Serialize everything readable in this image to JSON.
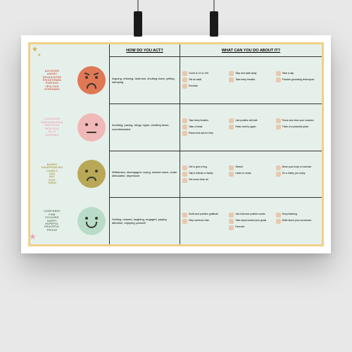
{
  "colors": {
    "border": "#f0d088",
    "bg": "#e6f0ea",
    "zone_red": "#e07856",
    "zone_pink": "#f0b8b8",
    "zone_olive": "#b8a858",
    "zone_green": "#b8dcc8",
    "text_red": "#d05848",
    "text_pink": "#e8a8b8",
    "text_olive": "#a89848",
    "text_green": "#5a7860",
    "icon_tint": "#e8c8b0"
  },
  "headers": {
    "act": "HOW DO YOU ACT?",
    "do": "WHAT CAN YOU DO ABOUT IT?"
  },
  "zones": [
    {
      "id": "red",
      "face_color_key": "zone_red",
      "label_color_key": "text_red",
      "face": "angry",
      "emotions": [
        "AGITATED",
        "ANGRY",
        "DEVASTATED",
        "FRIGHTENED",
        "FURIOUS",
        "JEALOUS",
        "STRESSED"
      ],
      "act": "Arguing, refusing, tantrums, shutting down, yelling, stomping",
      "tips": [
        "Count to 10 or 100",
        "Stop and walk away",
        "Take a nap",
        "Tell an adult",
        "Take deep breaths",
        "Practice grounding techniques",
        "Exercise",
        "",
        ""
      ]
    },
    {
      "id": "pink",
      "face_color_key": "zone_pink",
      "label_color_key": "text_pink",
      "face": "flat",
      "emotions": [
        "CONFUSED",
        "EMBARRASSED",
        "IRRITATED",
        "NERVOUS",
        "SILLY",
        "WORRIED"
      ],
      "act": "Avoiding, pacing, clingy, hyper, shutting down, overstimulated",
      "tips": [
        "Take deep breaths",
        "Use positive self-talk",
        "Tense and relax your muscles",
        "Take a break",
        "Relax and try again",
        "Think of a peaceful place",
        "Pause and ask for help",
        "",
        ""
      ]
    },
    {
      "id": "olive",
      "face_color_key": "zone_olive",
      "label_color_key": "text_olive",
      "face": "slight",
      "emotions": [
        "BORED",
        "DISAPPOINTED",
        "LONELY",
        "SAD",
        "SHY",
        "SICK",
        "TIRED"
      ],
      "act": "Withdrawn, disengaged, crying, slowed down, under stimulated, depressed",
      "tips": [
        "Get or give a hug",
        "Stretch",
        "Move your body or exercise",
        "Talk to friends or family",
        "Listen to music",
        "Do a hobby you enjoy",
        "Get some fresh air",
        "",
        ""
      ]
    },
    {
      "id": "green",
      "face_color_key": "zone_green",
      "label_color_key": "text_green",
      "face": "happy",
      "emotions": [
        "CONFIDENT",
        "FINE",
        "FOCUSED",
        "HAPPY",
        "HOPEFUL",
        "PEACEFUL",
        "PROUD"
      ],
      "act": "Smiling, relaxed, laughing, engaged, paying attention, enjoying yourself",
      "tips": [
        "Smile and practice gratitude",
        "Use kind and positive words",
        "Keep listening",
        "Help someone else",
        "Take steps toward your goals",
        "Write about your successes",
        "",
        "Exercise",
        ""
      ]
    }
  ]
}
